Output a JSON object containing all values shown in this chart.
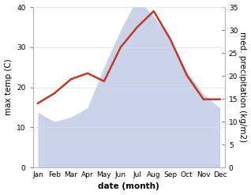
{
  "months": [
    "Jan",
    "Feb",
    "Mar",
    "Apr",
    "May",
    "Jun",
    "Jul",
    "Aug",
    "Sep",
    "Oct",
    "Nov",
    "Dec"
  ],
  "temperature": [
    16,
    18.5,
    22,
    23.5,
    21.5,
    30,
    35,
    39,
    32,
    23,
    17,
    17
  ],
  "precipitation": [
    12,
    10,
    11,
    13,
    22,
    30,
    37,
    33,
    28,
    21,
    16,
    13
  ],
  "temp_color": "#c0392b",
  "precip_color": "#c5cfe8",
  "temp_ylim": [
    0,
    40
  ],
  "precip_ylim": [
    0,
    35
  ],
  "temp_yticks": [
    0,
    10,
    20,
    30,
    40
  ],
  "precip_yticks": [
    0,
    5,
    10,
    15,
    20,
    25,
    30,
    35
  ],
  "xlabel": "date (month)",
  "ylabel_left": "max temp (C)",
  "ylabel_right": "med. precipitation (kg/m2)",
  "bg_color": "#ffffff",
  "label_fontsize": 7.5,
  "tick_fontsize": 6.5
}
